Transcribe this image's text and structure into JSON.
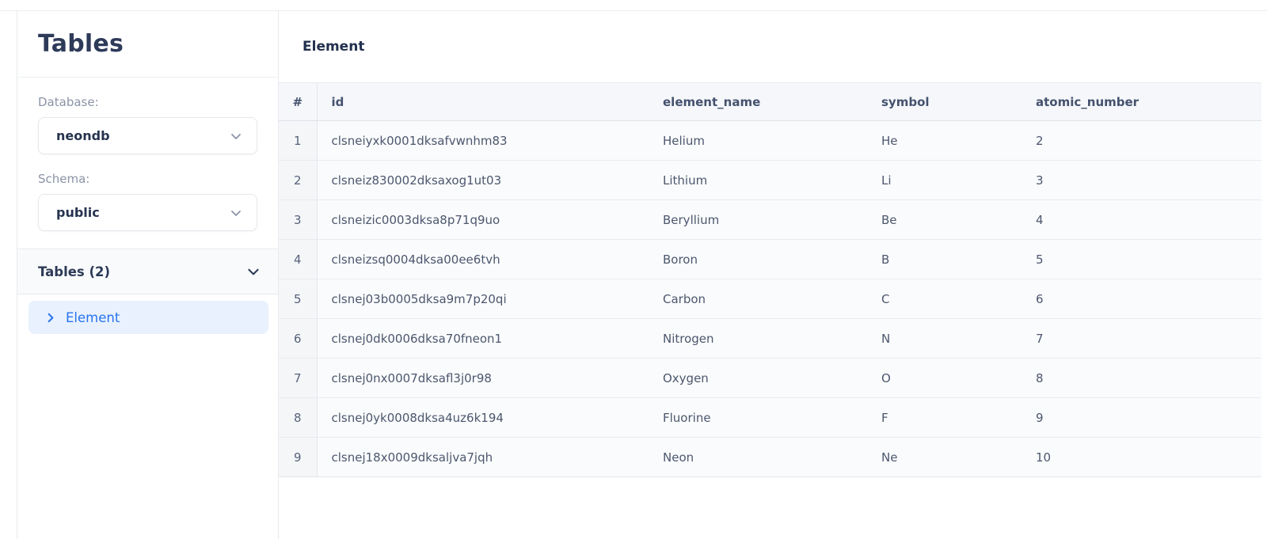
{
  "sidebar": {
    "title": "Tables",
    "database": {
      "label": "Database:",
      "value": "neondb"
    },
    "schema": {
      "label": "Schema:",
      "value": "public"
    },
    "tables_section": {
      "label": "Tables (2)"
    },
    "items": [
      {
        "label": "Element"
      }
    ]
  },
  "main": {
    "title": "Element",
    "table": {
      "columns": [
        {
          "key": "num",
          "label": "#"
        },
        {
          "key": "id",
          "label": "id"
        },
        {
          "key": "element_name",
          "label": "element_name"
        },
        {
          "key": "symbol",
          "label": "symbol"
        },
        {
          "key": "atomic_number",
          "label": "atomic_number"
        }
      ],
      "rows": [
        {
          "num": "1",
          "id": "clsneiyxk0001dksafvwnhm83",
          "element_name": "Helium",
          "symbol": "He",
          "atomic_number": "2"
        },
        {
          "num": "2",
          "id": "clsneiz830002dksaxog1ut03",
          "element_name": "Lithium",
          "symbol": "Li",
          "atomic_number": "3"
        },
        {
          "num": "3",
          "id": "clsneizic0003dksa8p71q9uo",
          "element_name": "Beryllium",
          "symbol": "Be",
          "atomic_number": "4"
        },
        {
          "num": "4",
          "id": "clsneizsq0004dksa00ee6tvh",
          "element_name": "Boron",
          "symbol": "B",
          "atomic_number": "5"
        },
        {
          "num": "5",
          "id": "clsnej03b0005dksa9m7p20qi",
          "element_name": "Carbon",
          "symbol": "C",
          "atomic_number": "6"
        },
        {
          "num": "6",
          "id": "clsnej0dk0006dksa70fneon1",
          "element_name": "Nitrogen",
          "symbol": "N",
          "atomic_number": "7"
        },
        {
          "num": "7",
          "id": "clsnej0nx0007dksafl3j0r98",
          "element_name": "Oxygen",
          "symbol": "O",
          "atomic_number": "8"
        },
        {
          "num": "8",
          "id": "clsnej0yk0008dksa4uz6k194",
          "element_name": "Fluorine",
          "symbol": "F",
          "atomic_number": "9"
        },
        {
          "num": "9",
          "id": "clsnej18x0009dksaljva7jqh",
          "element_name": "Neon",
          "symbol": "Ne",
          "atomic_number": "10"
        }
      ]
    }
  },
  "colors": {
    "accent_blue": "#2873f0",
    "selected_item_bg": "#e8f1fd",
    "heading_navy": "#2e3a59",
    "table_header_bg": "#f5f7fa"
  }
}
